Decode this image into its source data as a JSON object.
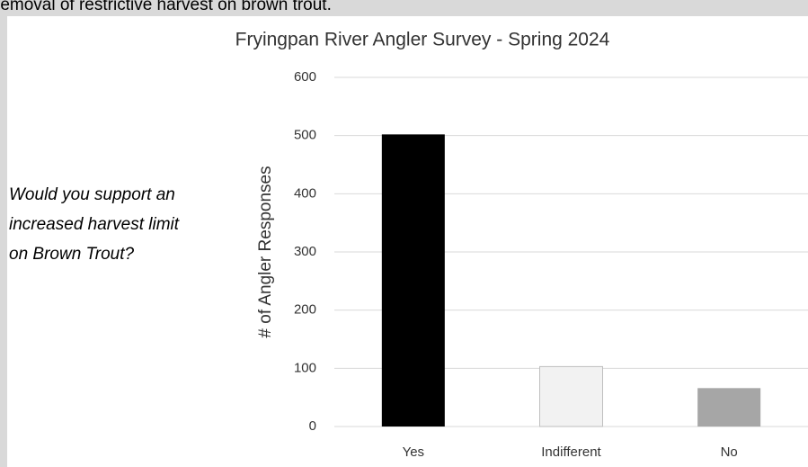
{
  "caption": "removal of restrictive harvest on brown trout.",
  "question": [
    "Would you support an",
    "increased harvest limit",
    "on Brown Trout?"
  ],
  "chart_data": {
    "type": "bar",
    "title": "Fryingpan River Angler Survey - Spring 2024",
    "y_label": "# of Angler Responses",
    "categories": [
      "Yes",
      "Indifferent",
      "No"
    ],
    "values": [
      502,
      103,
      66
    ],
    "colors": [
      "#000000",
      "#f2f2f2",
      "#a6a6a6"
    ],
    "ylim": [
      0,
      600
    ],
    "yticks": [
      0,
      100,
      200,
      300,
      400,
      500,
      600
    ],
    "grid": true
  }
}
